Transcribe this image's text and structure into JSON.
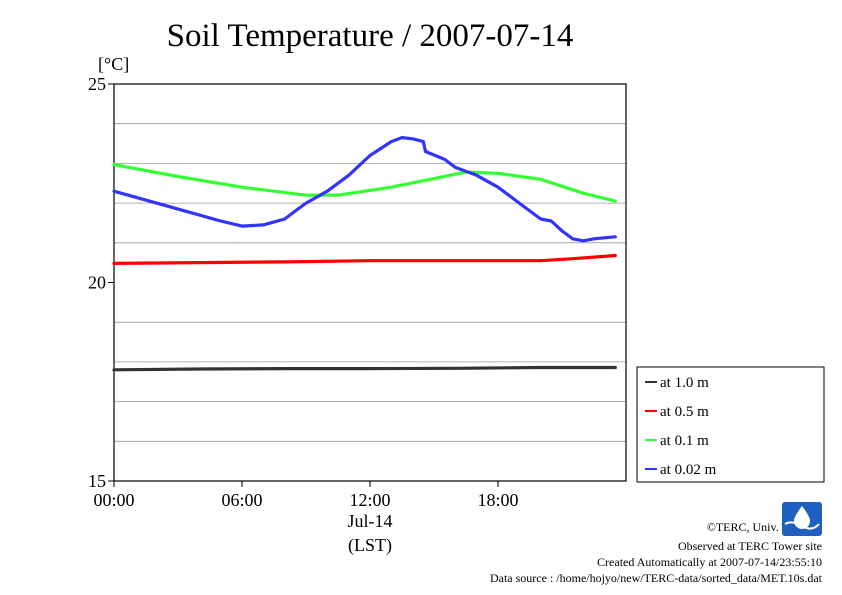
{
  "chart_data": {
    "type": "line",
    "title": "Soil Temperature / 2007-07-14",
    "ylabel": "[°C]",
    "xlabel": "(LST)",
    "date_label": "Jul-14",
    "xlim": [
      0,
      24
    ],
    "ylim": [
      15,
      25
    ],
    "x_ticks": [
      {
        "value": 0,
        "label": "00:00"
      },
      {
        "value": 6,
        "label": "06:00"
      },
      {
        "value": 12,
        "label": "12:00"
      },
      {
        "value": 18,
        "label": "18:00"
      }
    ],
    "y_ticks": [
      {
        "value": 25,
        "label": "25"
      },
      {
        "value": 20,
        "label": "20"
      },
      {
        "value": 15,
        "label": "15"
      }
    ],
    "y_gridlines": [
      16,
      17,
      18,
      19,
      21,
      22,
      23,
      24
    ],
    "legend_position": "right",
    "series": [
      {
        "name": "at 1.0 m",
        "color": "#333333",
        "x": [
          0,
          4,
          8,
          12,
          16,
          20,
          23.5
        ],
        "y": [
          17.8,
          17.82,
          17.83,
          17.83,
          17.84,
          17.86,
          17.86
        ]
      },
      {
        "name": "at 0.5 m",
        "color": "#ff0000",
        "x": [
          0,
          4,
          8,
          12,
          16,
          20,
          21.5,
          23.5
        ],
        "y": [
          20.48,
          20.5,
          20.52,
          20.55,
          20.55,
          20.55,
          20.6,
          20.68
        ]
      },
      {
        "name": "at 0.1 m",
        "color": "#33ff33",
        "x": [
          0,
          3,
          6,
          9,
          10.5,
          13,
          16.5,
          18,
          20,
          22,
          23.5
        ],
        "y": [
          22.97,
          22.67,
          22.4,
          22.2,
          22.2,
          22.4,
          22.78,
          22.75,
          22.6,
          22.25,
          22.05
        ]
      },
      {
        "name": "at 0.02 m",
        "color": "#3333ff",
        "x": [
          0,
          3,
          5,
          6,
          7,
          8,
          8.5,
          9,
          10,
          11,
          12,
          13,
          13.5,
          14,
          14.5,
          14.6,
          15.5,
          16,
          17,
          18,
          19,
          20,
          20.5,
          21,
          21.5,
          22,
          22.5,
          23.5
        ],
        "y": [
          22.3,
          21.85,
          21.55,
          21.42,
          21.45,
          21.6,
          21.8,
          22.0,
          22.3,
          22.7,
          23.2,
          23.55,
          23.65,
          23.62,
          23.55,
          23.3,
          23.1,
          22.9,
          22.7,
          22.4,
          22.0,
          21.6,
          21.55,
          21.3,
          21.1,
          21.05,
          21.1,
          21.15
        ]
      }
    ]
  },
  "credits": {
    "copyright": "©TERC, Univ. Tsukuba",
    "observed": "Observed at TERC Tower site",
    "created": "Created Automatically at 2007-07-14/23:55:10",
    "source": "Data source : /home/hojyo/new/TERC-data/sorted_data/MET.10s.dat",
    "logo_text": "TERC"
  }
}
